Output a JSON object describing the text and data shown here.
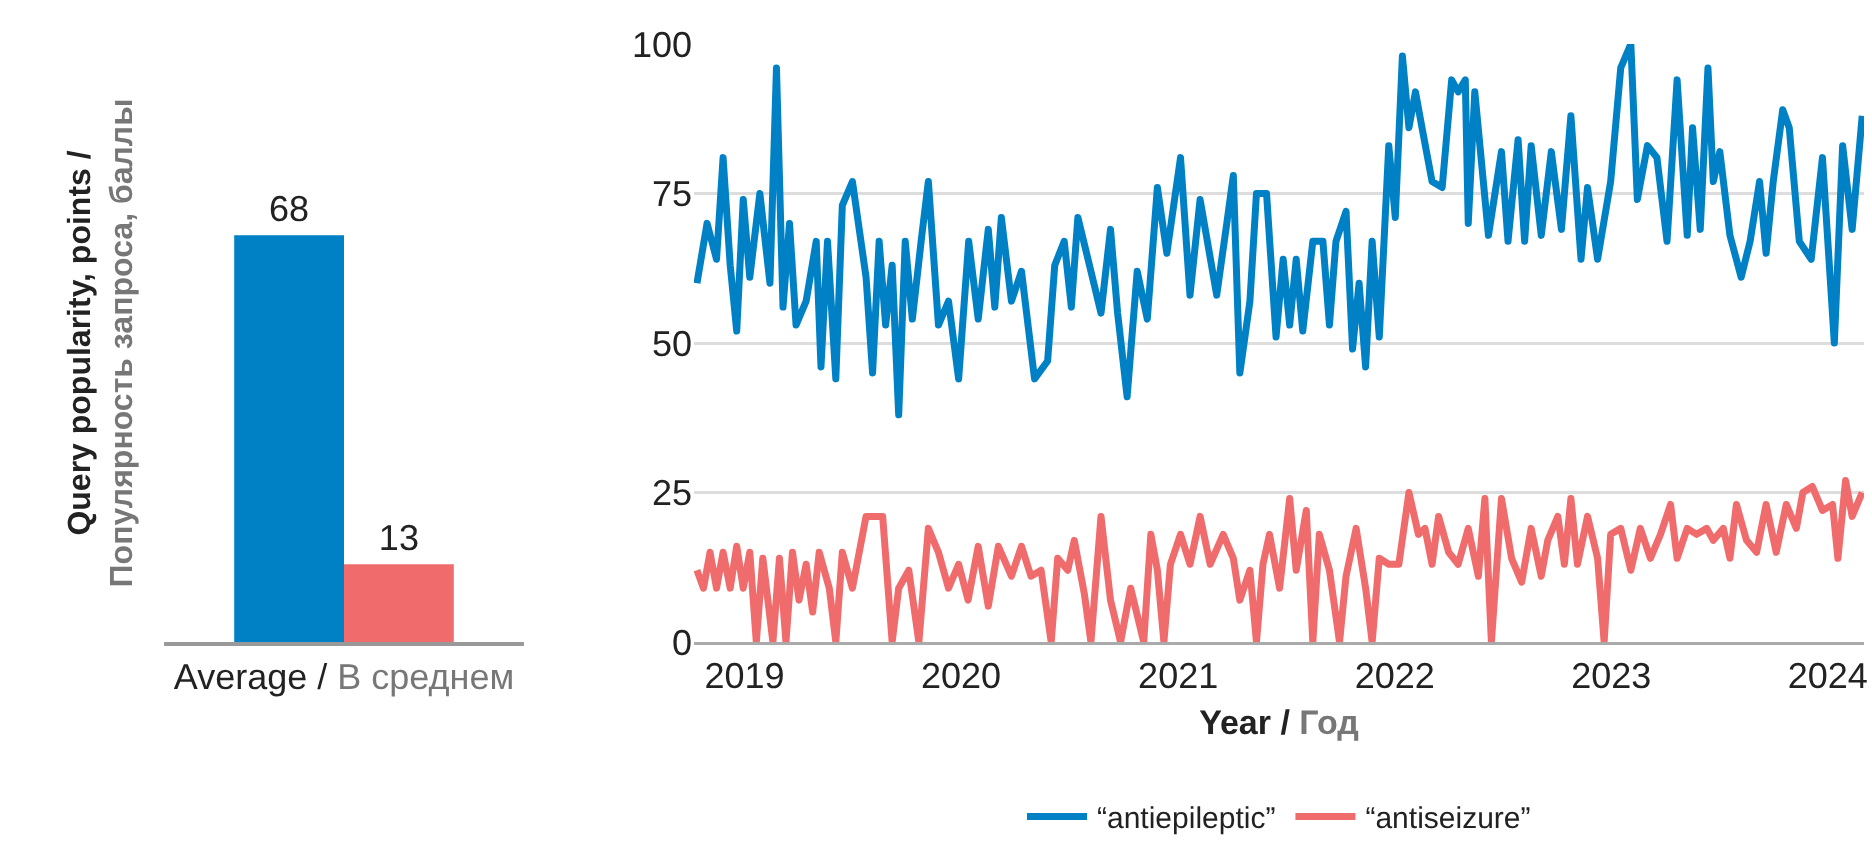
{
  "chart_data": [
    {
      "type": "bar",
      "ylabel": "Query popularity, points / Популярность запроса, баллы",
      "categories": [
        "Average / В среднем"
      ],
      "series": [
        {
          "color": "#0081c6",
          "values": [
            68
          ]
        },
        {
          "color": "#f06b6b",
          "values": [
            13
          ]
        }
      ],
      "data_labels": true,
      "ylim": [
        0,
        100
      ],
      "tick_labels": "x"
    },
    {
      "type": "line",
      "xlabel": "Year / Год",
      "xlim": [
        "2018-10-08",
        "2024-03-02"
      ],
      "xticks": [
        {
          "value": "2019-01-01",
          "label": "2019"
        },
        {
          "value": "2020-01-01",
          "label": "2020"
        },
        {
          "value": "2021-01-01",
          "label": "2021"
        },
        {
          "value": "2022-01-01",
          "label": "2022"
        },
        {
          "value": "2023-01-01",
          "label": "2023"
        },
        {
          "value": "2024-01-01",
          "label": "2024"
        }
      ],
      "ylim": [
        0,
        100
      ],
      "yticks": [
        0,
        25,
        50,
        75,
        100
      ],
      "grid": "y",
      "legend": "bottom",
      "series": [
        {
          "name": "“antiepileptic”",
          "color": "#0081c6",
          "x": [
            "2018-10-13",
            "2018-10-30",
            "2018-11-15",
            "2018-11-26",
            "2018-12-08",
            "2018-12-19",
            "2018-12-30",
            "2019-01-10",
            "2019-01-27",
            "2019-02-13",
            "2019-02-24",
            "2019-03-07",
            "2019-03-18",
            "2019-03-29",
            "2019-04-15",
            "2019-05-02",
            "2019-05-10",
            "2019-05-21",
            "2019-06-04",
            "2019-06-15",
            "2019-07-02",
            "2019-07-25",
            "2019-08-05",
            "2019-08-16",
            "2019-08-27",
            "2019-09-07",
            "2019-09-18",
            "2019-09-29",
            "2019-10-11",
            "2019-10-27",
            "2019-11-07",
            "2019-11-24",
            "2019-12-11",
            "2019-12-28",
            "2020-01-14",
            "2020-01-30",
            "2020-02-16",
            "2020-02-27",
            "2020-03-09",
            "2020-03-26",
            "2020-04-12",
            "2020-05-04",
            "2020-05-26",
            "2020-06-07",
            "2020-06-23",
            "2020-07-05",
            "2020-07-16",
            "2020-08-07",
            "2020-08-24",
            "2020-09-09",
            "2020-09-21",
            "2020-10-07",
            "2020-10-24",
            "2020-11-10",
            "2020-11-27",
            "2020-12-13",
            "2021-01-05",
            "2021-01-21",
            "2021-02-07",
            "2021-03-07",
            "2021-03-24",
            "2021-04-04",
            "2021-04-15",
            "2021-05-02",
            "2021-05-13",
            "2021-05-30",
            "2021-06-15",
            "2021-06-27",
            "2021-07-08",
            "2021-07-19",
            "2021-07-30",
            "2021-08-16",
            "2021-09-02",
            "2021-09-13",
            "2021-09-24",
            "2021-10-11",
            "2021-10-22",
            "2021-11-02",
            "2021-11-13",
            "2021-11-24",
            "2021-12-06",
            "2021-12-22",
            "2022-01-02",
            "2022-01-14",
            "2022-01-25",
            "2022-02-05",
            "2022-02-16",
            "2022-03-05",
            "2022-03-22",
            "2022-04-07",
            "2022-04-18",
            "2022-04-30",
            "2022-05-05",
            "2022-05-16",
            "2022-06-08",
            "2022-06-30",
            "2022-07-11",
            "2022-07-28",
            "2022-08-08",
            "2022-08-19",
            "2022-09-05",
            "2022-09-22",
            "2022-10-09",
            "2022-10-25",
            "2022-11-11",
            "2022-11-22",
            "2022-12-09",
            "2022-12-31",
            "2023-01-17",
            "2023-02-03",
            "2023-02-14",
            "2023-03-03",
            "2023-03-19",
            "2023-04-05",
            "2023-04-22",
            "2023-05-09",
            "2023-05-18",
            "2023-05-31",
            "2023-06-13",
            "2023-06-22",
            "2023-07-03",
            "2023-07-20",
            "2023-08-08",
            "2023-08-23",
            "2023-09-08",
            "2023-09-19",
            "2023-10-01",
            "2023-10-17",
            "2023-10-28",
            "2023-11-14",
            "2023-12-04",
            "2023-12-23",
            "2024-01-12",
            "2024-01-26",
            "2024-02-11",
            "2024-02-28"
          ],
          "values": [
            60,
            70,
            64,
            81,
            63,
            52,
            74,
            61,
            75,
            60,
            96,
            56,
            70,
            53,
            57,
            67,
            46,
            67,
            44,
            73,
            77,
            61,
            45,
            67,
            53,
            63,
            38,
            67,
            54,
            68,
            77,
            53,
            57,
            44,
            67,
            54,
            69,
            56,
            71,
            57,
            62,
            44,
            47,
            63,
            67,
            56,
            71,
            62,
            55,
            69,
            55,
            41,
            62,
            54,
            76,
            65,
            81,
            58,
            74,
            58,
            70,
            78,
            45,
            57,
            75,
            75,
            51,
            64,
            53,
            64,
            52,
            67,
            67,
            53,
            67,
            72,
            49,
            60,
            46,
            67,
            51,
            83,
            71,
            98,
            86,
            92,
            86,
            77,
            76,
            94,
            92,
            94,
            70,
            92,
            68,
            82,
            67,
            84,
            67,
            83,
            68,
            82,
            69,
            88,
            64,
            76,
            64,
            77,
            96,
            100,
            74,
            83,
            81,
            67,
            94,
            68,
            86,
            69,
            96,
            77,
            82,
            68,
            61,
            67,
            77,
            65,
            77,
            89,
            86,
            67,
            64,
            81,
            50,
            83,
            69,
            88
          ]
        },
        {
          "name": "“antiseizure”",
          "color": "#f06b6b",
          "x": [
            "2018-10-13",
            "2018-10-24",
            "2018-11-04",
            "2018-11-15",
            "2018-11-26",
            "2018-12-08",
            "2018-12-19",
            "2018-12-30",
            "2019-01-10",
            "2019-01-21",
            "2019-02-01",
            "2019-02-18",
            "2019-03-01",
            "2019-03-12",
            "2019-03-23",
            "2019-04-03",
            "2019-04-15",
            "2019-04-26",
            "2019-05-07",
            "2019-05-24",
            "2019-06-04",
            "2019-06-15",
            "2019-07-02",
            "2019-07-25",
            "2019-08-22",
            "2019-09-07",
            "2019-09-18",
            "2019-10-05",
            "2019-10-22",
            "2019-11-07",
            "2019-11-24",
            "2019-12-11",
            "2019-12-28",
            "2020-01-13",
            "2020-01-30",
            "2020-02-16",
            "2020-03-04",
            "2020-03-26",
            "2020-04-12",
            "2020-04-28",
            "2020-05-15",
            "2020-06-01",
            "2020-06-12",
            "2020-06-29",
            "2020-07-10",
            "2020-07-27",
            "2020-08-07",
            "2020-08-24",
            "2020-09-09",
            "2020-09-26",
            "2020-10-13",
            "2020-11-04",
            "2020-11-16",
            "2020-11-27",
            "2020-12-08",
            "2020-12-19",
            "2021-01-05",
            "2021-01-21",
            "2021-02-07",
            "2021-02-24",
            "2021-03-18",
            "2021-04-04",
            "2021-04-15",
            "2021-05-02",
            "2021-05-13",
            "2021-05-24",
            "2021-06-04",
            "2021-06-21",
            "2021-07-08",
            "2021-07-19",
            "2021-08-05",
            "2021-08-16",
            "2021-08-27",
            "2021-09-13",
            "2021-09-30",
            "2021-10-11",
            "2021-10-28",
            "2021-11-13",
            "2021-11-24",
            "2021-12-06",
            "2021-12-22",
            "2022-01-08",
            "2022-01-25",
            "2022-02-10",
            "2022-02-21",
            "2022-03-05",
            "2022-03-16",
            "2022-04-02",
            "2022-04-18",
            "2022-05-05",
            "2022-05-22",
            "2022-06-02",
            "2022-06-13",
            "2022-06-30",
            "2022-07-17",
            "2022-08-03",
            "2022-08-19",
            "2022-09-05",
            "2022-09-16",
            "2022-10-03",
            "2022-10-14",
            "2022-10-25",
            "2022-11-05",
            "2022-11-22",
            "2022-12-09",
            "2022-12-20",
            "2022-12-31",
            "2023-01-17",
            "2023-02-03",
            "2023-02-19",
            "2023-03-08",
            "2023-03-25",
            "2023-04-11",
            "2023-04-22",
            "2023-05-09",
            "2023-05-25",
            "2023-06-11",
            "2023-06-22",
            "2023-07-09",
            "2023-07-20",
            "2023-07-31",
            "2023-08-17",
            "2023-09-03",
            "2023-09-19",
            "2023-10-06",
            "2023-10-23",
            "2023-11-09",
            "2023-11-20",
            "2023-12-06",
            "2023-12-23",
            "2024-01-09",
            "2024-01-18",
            "2024-01-31",
            "2024-02-11",
            "2024-02-28"
          ],
          "values": [
            12,
            9,
            15,
            9,
            15,
            9,
            16,
            9,
            15,
            0,
            14,
            0,
            14,
            0,
            15,
            7,
            13,
            5,
            15,
            9,
            0,
            15,
            9,
            21,
            21,
            0,
            9,
            12,
            0,
            19,
            15,
            9,
            13,
            7,
            16,
            6,
            16,
            11,
            16,
            11,
            12,
            0,
            14,
            12,
            17,
            8,
            0,
            21,
            7,
            0,
            9,
            0,
            18,
            12,
            0,
            13,
            18,
            13,
            21,
            13,
            18,
            14,
            7,
            12,
            0,
            13,
            18,
            9,
            24,
            12,
            22,
            0,
            18,
            12,
            0,
            11,
            19,
            9,
            0,
            14,
            13,
            13,
            25,
            18,
            19,
            13,
            21,
            15,
            13,
            19,
            11,
            24,
            0,
            24,
            14,
            10,
            19,
            11,
            17,
            21,
            13,
            24,
            13,
            21,
            14,
            0,
            18,
            19,
            12,
            19,
            14,
            18,
            23,
            14,
            19,
            18,
            19,
            17,
            19,
            14,
            23,
            17,
            15,
            23,
            15,
            23,
            19,
            25,
            26,
            22,
            23,
            14,
            27,
            21,
            25
          ]
        }
      ]
    }
  ]
}
